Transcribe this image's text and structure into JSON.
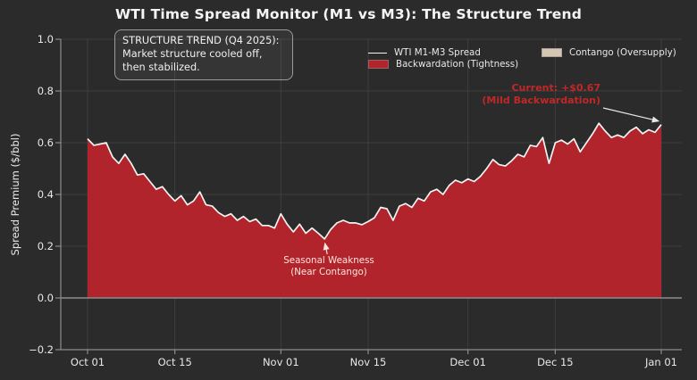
{
  "figure": {
    "background": "#2b2b2b",
    "grid_color": "#3e3e3e",
    "spine_color": "#8c8c8c",
    "text_color": "#e8e8e8"
  },
  "chart_data": {
    "type": "area",
    "title": "WTI Time Spread Monitor (M1 vs M3): The Structure Trend",
    "xlabel": "",
    "ylabel": "Spread Premium ($/bbl)",
    "ylim": [
      -0.2,
      1.0
    ],
    "grid": true,
    "x_unit": "days since Oct 01",
    "x_ticks": [
      {
        "day": 0,
        "label": "Oct 01"
      },
      {
        "day": 14,
        "label": "Oct 15"
      },
      {
        "day": 31,
        "label": "Nov 01"
      },
      {
        "day": 45,
        "label": "Nov 15"
      },
      {
        "day": 61,
        "label": "Dec 01"
      },
      {
        "day": 75,
        "label": "Dec 15"
      },
      {
        "day": 92,
        "label": "Jan 01"
      }
    ],
    "y_ticks": [
      {
        "v": 1.0,
        "label": "1.0"
      },
      {
        "v": 0.8,
        "label": "0.8"
      },
      {
        "v": 0.6,
        "label": "0.6"
      },
      {
        "v": 0.4,
        "label": "0.4"
      },
      {
        "v": 0.2,
        "label": "0.2"
      },
      {
        "v": 0.0,
        "label": "0.0"
      },
      {
        "v": -0.2,
        "label": "−0.2"
      }
    ],
    "zero_line_value": 0.0,
    "series": [
      {
        "name": "WTI M1-M3 Spread",
        "line_color": "#f3f3f3",
        "fill_color": "#b2242c",
        "values": [
          0.615,
          0.59,
          0.595,
          0.6,
          0.545,
          0.52,
          0.555,
          0.52,
          0.475,
          0.48,
          0.45,
          0.42,
          0.43,
          0.4,
          0.375,
          0.395,
          0.36,
          0.375,
          0.41,
          0.36,
          0.355,
          0.33,
          0.315,
          0.325,
          0.3,
          0.315,
          0.295,
          0.305,
          0.28,
          0.28,
          0.27,
          0.325,
          0.285,
          0.255,
          0.285,
          0.25,
          0.27,
          0.25,
          0.228,
          0.265,
          0.29,
          0.3,
          0.29,
          0.29,
          0.283,
          0.295,
          0.31,
          0.35,
          0.345,
          0.3,
          0.355,
          0.365,
          0.35,
          0.385,
          0.375,
          0.41,
          0.42,
          0.4,
          0.435,
          0.455,
          0.445,
          0.46,
          0.45,
          0.47,
          0.5,
          0.535,
          0.515,
          0.51,
          0.53,
          0.555,
          0.545,
          0.59,
          0.585,
          0.62,
          0.52,
          0.6,
          0.61,
          0.595,
          0.615,
          0.565,
          0.6,
          0.635,
          0.675,
          0.645,
          0.62,
          0.63,
          0.62,
          0.645,
          0.66,
          0.635,
          0.65,
          0.64,
          0.67
        ]
      }
    ],
    "legend": {
      "position": "upper center",
      "entries": [
        {
          "label": "WTI M1-M3 Spread",
          "swatch": "line",
          "color": "#f3f3f3"
        },
        {
          "label": "Backwardation (Tightness)",
          "swatch": "patch",
          "color": "#b2242c"
        },
        {
          "label": "Contango (Oversupply)",
          "swatch": "patch",
          "color": "#d4c6b2"
        }
      ]
    }
  },
  "annotations": {
    "structure_note": {
      "lines": [
        "STRUCTURE TREND (Q4 2025):",
        "Market structure cooled off,",
        "then stabilized."
      ]
    },
    "current": {
      "line1": "Current: +$0.67",
      "line2": "(Mild Backwardation)",
      "color": "#c02828",
      "target_day": 92,
      "target_value": 0.67
    },
    "seasonal": {
      "line1": "Seasonal Weakness",
      "line2": "(Near Contango)",
      "color": "#ffe4dc",
      "target_day": 38,
      "target_value": 0.228
    }
  }
}
